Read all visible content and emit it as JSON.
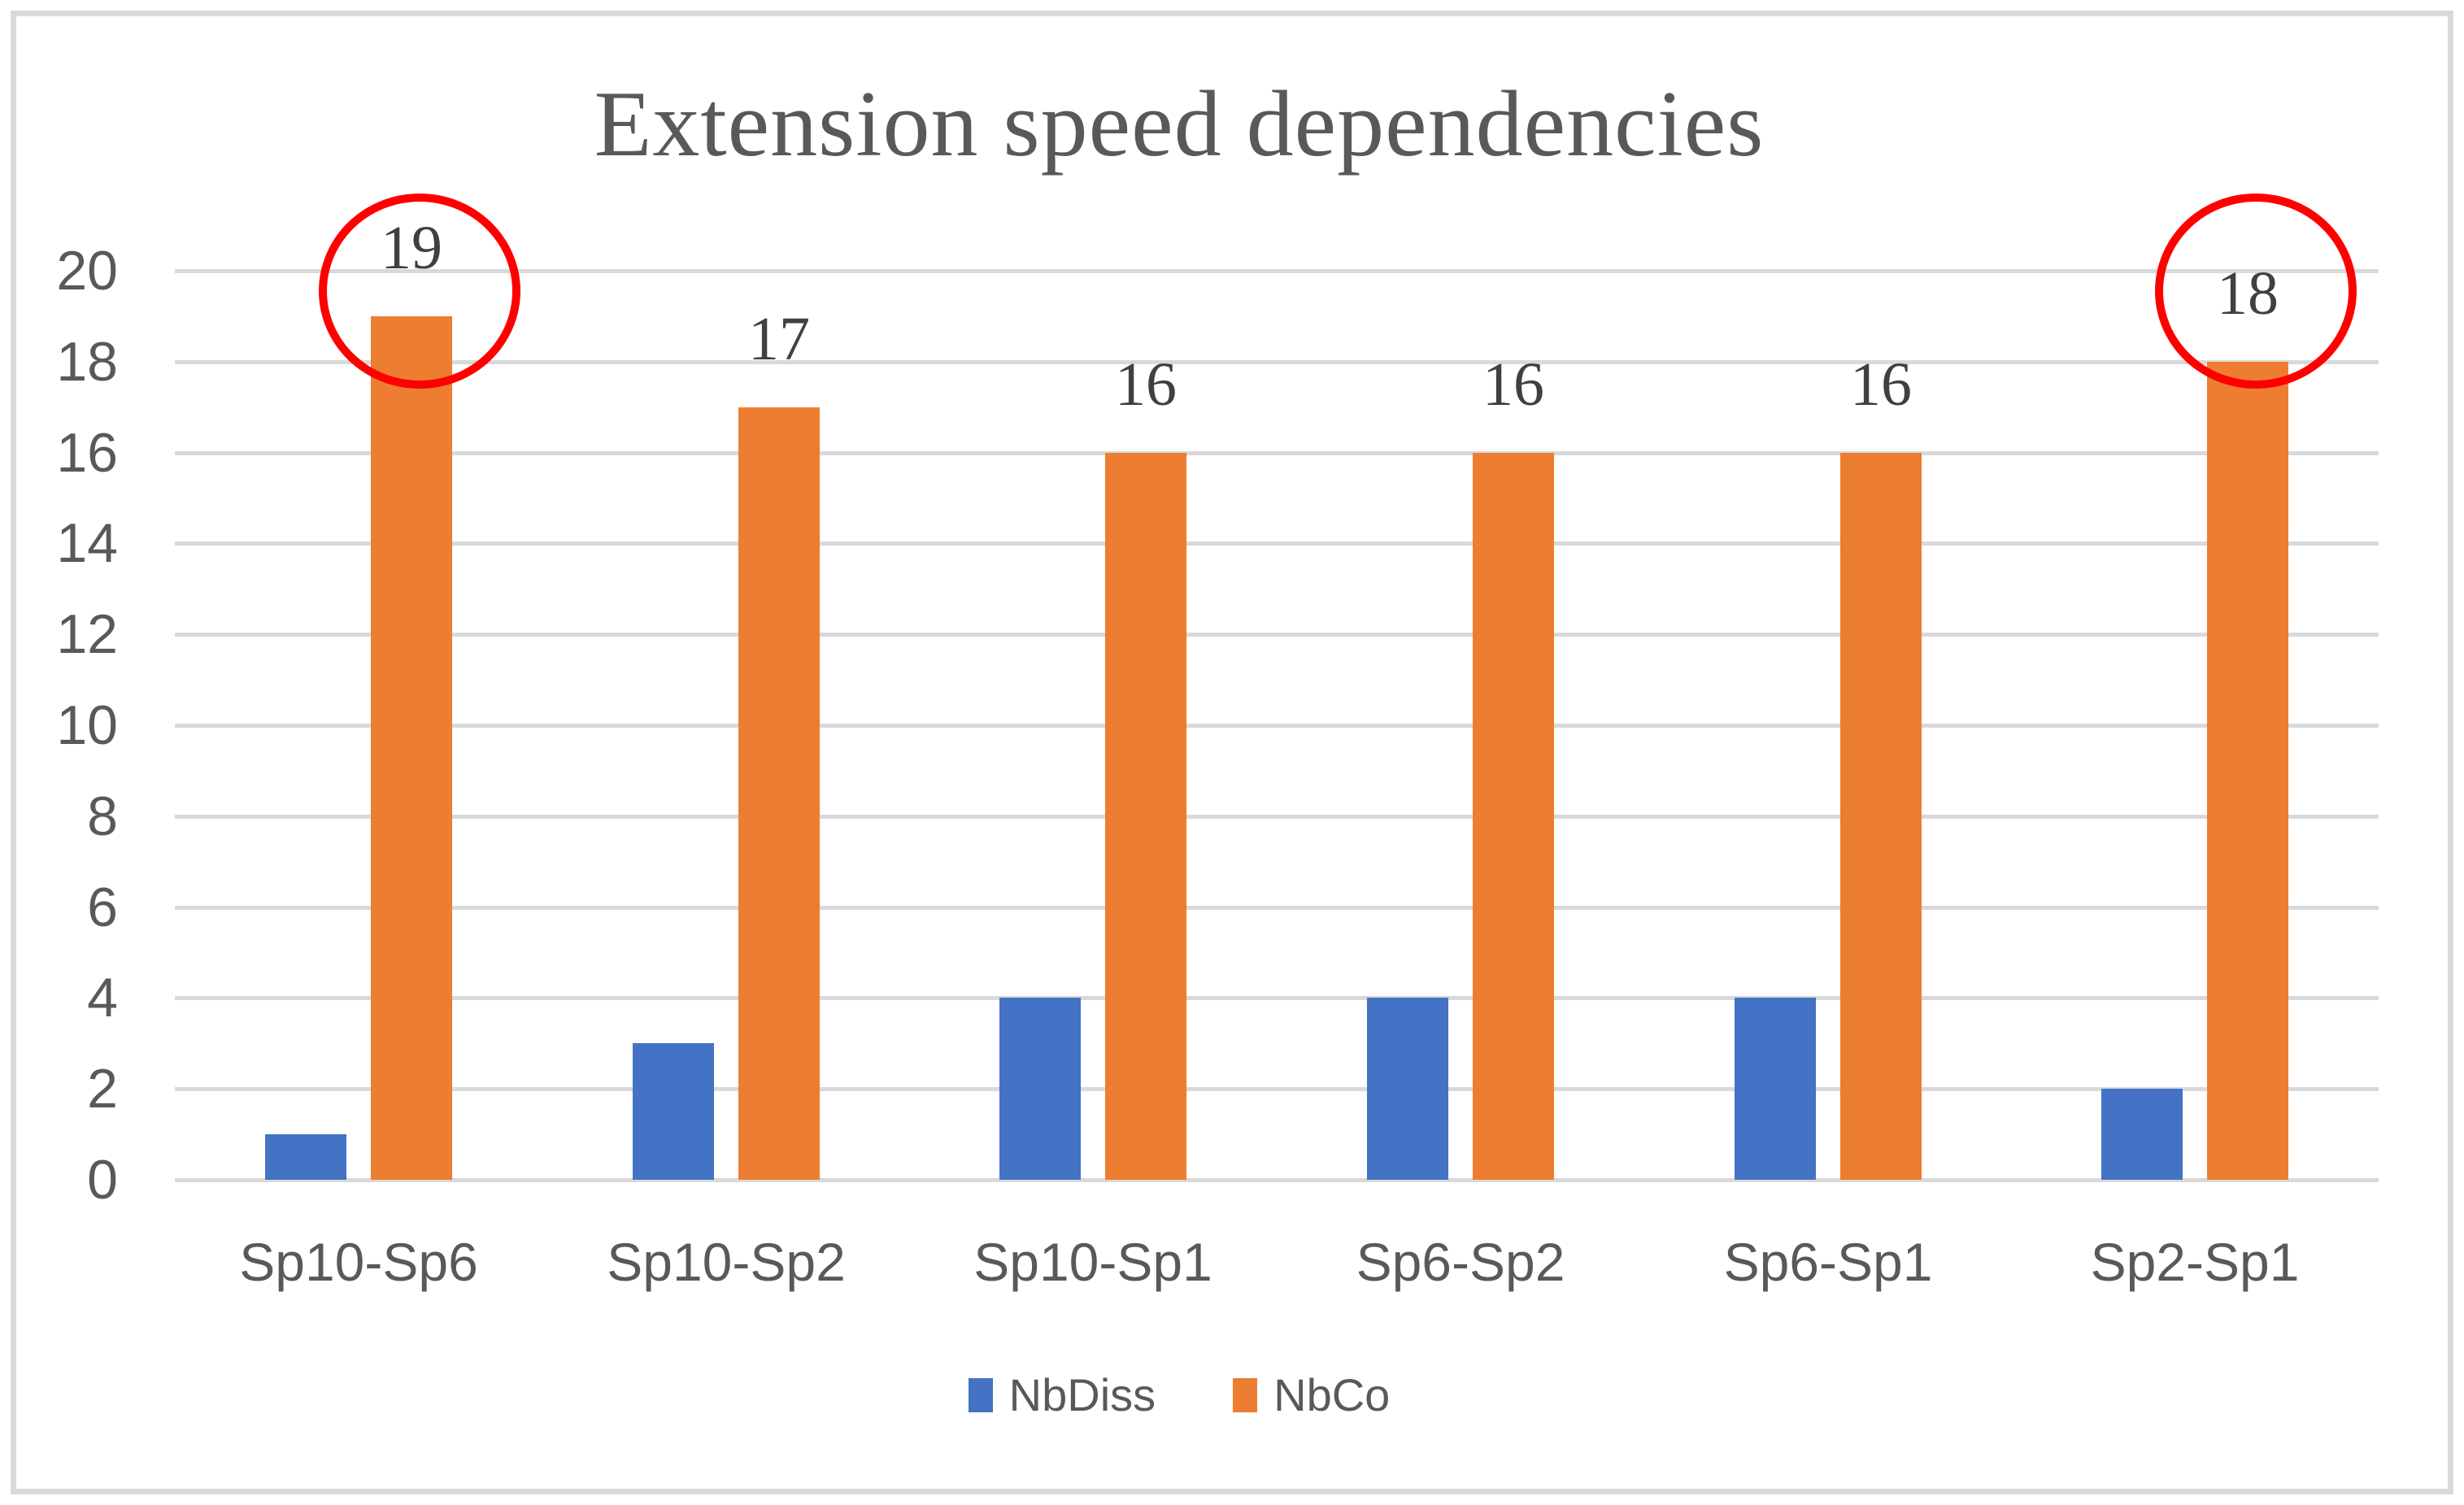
{
  "figure": {
    "background": "#FFFFFF",
    "border_color": "#D9D9D9"
  },
  "chart_data": {
    "type": "bar",
    "title": "Extension speed dependencies",
    "categories": [
      "Sp10-Sp6",
      "Sp10-Sp2",
      "Sp10-Sp1",
      "Sp6-Sp2",
      "Sp6-Sp1",
      "Sp2-Sp1"
    ],
    "series": [
      {
        "name": "NbDiss",
        "color": "#4472C4",
        "values": [
          1,
          3,
          4,
          4,
          4,
          2
        ]
      },
      {
        "name": "NbCo",
        "color": "#ED7D31",
        "values": [
          19,
          17,
          16,
          16,
          16,
          18
        ],
        "data_labels": [
          "19",
          "17",
          "16",
          "16",
          "16",
          "18"
        ]
      }
    ],
    "xlabel": "",
    "ylabel": "",
    "ylim": [
      0,
      20
    ],
    "yticks": [
      0,
      2,
      4,
      6,
      8,
      10,
      12,
      14,
      16,
      18,
      20
    ],
    "grid": "horizontal",
    "gridline_color": "#D9D9D9",
    "axis_text_color": "#595959",
    "data_label_color": "#404040",
    "title_color": "#595959",
    "legend_position": "bottom",
    "annotations": [
      {
        "type": "circle",
        "series": "NbCo",
        "category": "Sp10-Sp6",
        "around_label": "19",
        "color": "#FF0000"
      },
      {
        "type": "circle",
        "series": "NbCo",
        "category": "Sp2-Sp1",
        "around_label": "18",
        "color": "#FF0000"
      }
    ]
  }
}
